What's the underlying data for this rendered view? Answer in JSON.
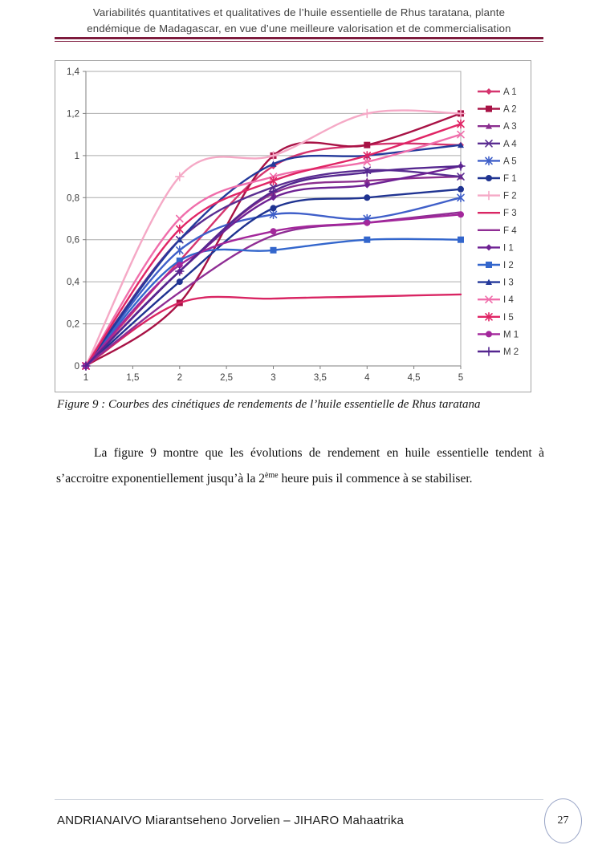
{
  "header": {
    "line1": "Variabilités quantitatives et qualitatives de l’huile essentielle de Rhus taratana, plante",
    "line2": "endémique de Madagascar, en vue d’une meilleure valorisation et de commercialisation"
  },
  "figure": {
    "caption": "Figure 9 : Courbes des cinétiques de rendements de l’huile essentielle de Rhus taratana"
  },
  "paragraph": {
    "part1": "La figure 9 montre que les évolutions de rendement en huile essentielle tendent à s’accroitre exponentiellement jusqu’à la 2",
    "sup": "ème",
    "part2": " heure puis il commence à se stabiliser."
  },
  "footer": {
    "authors": "ANDRIANAIVO Miarantseheno Jorvelien – JIHARO Mahaatrika",
    "page_number": "27"
  },
  "chart_data": {
    "type": "line",
    "title": "",
    "xlabel": "",
    "ylabel": "",
    "x": [
      1,
      2,
      3,
      4,
      5
    ],
    "x_ticks": [
      1,
      1.5,
      2,
      2.5,
      3,
      3.5,
      4,
      4.5,
      5
    ],
    "x_tick_labels": [
      "1",
      "1,5",
      "2",
      "2,5",
      "3",
      "3,5",
      "4",
      "4,5",
      "5"
    ],
    "y_ticks": [
      0,
      0.2,
      0.4,
      0.6,
      0.8,
      1,
      1.2,
      1.4
    ],
    "y_tick_labels": [
      "0",
      "0,2",
      "0,4",
      "0,6",
      "0,8",
      "1",
      "1,2",
      "1,4"
    ],
    "xlim": [
      1,
      5
    ],
    "ylim": [
      0,
      1.4
    ],
    "grid": true,
    "legend_position": "right",
    "series": [
      {
        "name": "A 1",
        "color": "#D5356F",
        "marker": "diamond",
        "values": [
          0,
          0.5,
          0.95,
          1.05,
          1.05
        ]
      },
      {
        "name": "A 2",
        "color": "#A81245",
        "marker": "square",
        "values": [
          0,
          0.3,
          1.0,
          1.05,
          1.2
        ]
      },
      {
        "name": "A 3",
        "color": "#8B2F8F",
        "marker": "triangle",
        "values": [
          0,
          0.45,
          0.82,
          0.88,
          0.9
        ]
      },
      {
        "name": "A 4",
        "color": "#5A2D91",
        "marker": "x",
        "values": [
          0,
          0.6,
          0.85,
          0.93,
          0.9
        ]
      },
      {
        "name": "A 5",
        "color": "#3F5FC9",
        "marker": "asterisk",
        "values": [
          0,
          0.55,
          0.72,
          0.7,
          0.8
        ]
      },
      {
        "name": "F 1",
        "color": "#1F3391",
        "marker": "circle",
        "values": [
          0,
          0.4,
          0.75,
          0.8,
          0.84
        ]
      },
      {
        "name": "F 2",
        "color": "#F5A9C6",
        "marker": "plus",
        "values": [
          0,
          0.9,
          1.0,
          1.2,
          1.2
        ]
      },
      {
        "name": "F 3",
        "color": "#D92563",
        "marker": "none",
        "values": [
          0,
          0.3,
          0.32,
          0.33,
          0.34
        ]
      },
      {
        "name": "F 4",
        "color": "#8F2D94",
        "marker": "none",
        "values": [
          0,
          0.35,
          0.62,
          0.68,
          0.73
        ]
      },
      {
        "name": "I 1",
        "color": "#6E2193",
        "marker": "diamond",
        "values": [
          0,
          0.45,
          0.8,
          0.86,
          0.95
        ]
      },
      {
        "name": "I 2",
        "color": "#3366CC",
        "marker": "square",
        "values": [
          0,
          0.5,
          0.55,
          0.6,
          0.6
        ]
      },
      {
        "name": "I 3",
        "color": "#24399B",
        "marker": "triangle",
        "values": [
          0,
          0.6,
          0.96,
          1.0,
          1.05
        ]
      },
      {
        "name": "I 4",
        "color": "#F06EAB",
        "marker": "x",
        "values": [
          0,
          0.7,
          0.9,
          0.97,
          1.1
        ]
      },
      {
        "name": "I 5",
        "color": "#E02565",
        "marker": "asterisk",
        "values": [
          0,
          0.65,
          0.88,
          1.0,
          1.15
        ]
      },
      {
        "name": "M 1",
        "color": "#A3279B",
        "marker": "circle",
        "values": [
          0,
          0.48,
          0.64,
          0.68,
          0.72
        ]
      },
      {
        "name": "M 2",
        "color": "#55268F",
        "marker": "plus",
        "values": [
          0,
          0.45,
          0.83,
          0.92,
          0.95
        ]
      }
    ]
  }
}
